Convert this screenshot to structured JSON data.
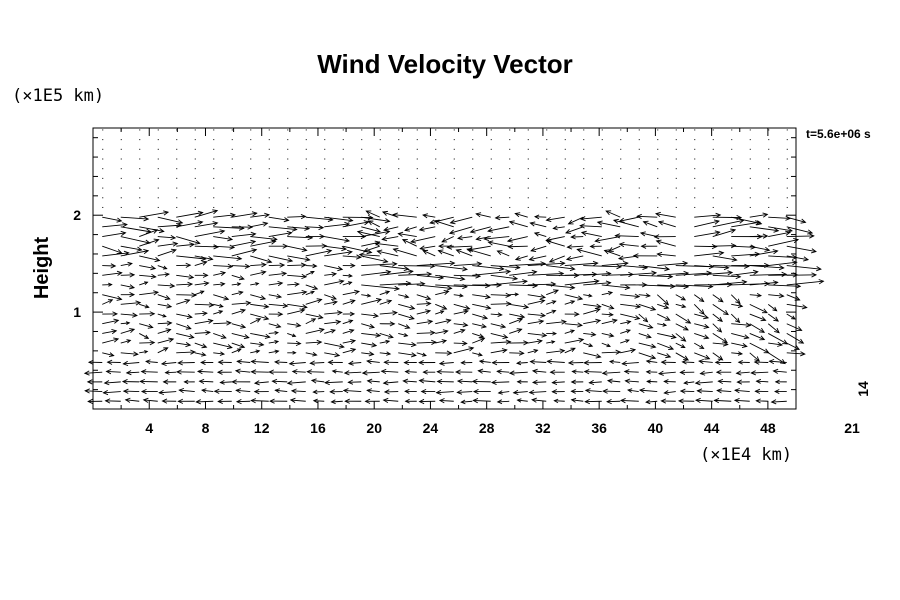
{
  "chart_data": {
    "type": "vector-field",
    "title": "Wind Velocity Vector",
    "ylabel": "Height",
    "xunit": "(×1E4 km)",
    "yunit": "(×1E5 km)",
    "time_label": "t=5.6e+06 s",
    "reference_vector_value": "14",
    "reference_vector_x": "21",
    "xlim": [
      0,
      50
    ],
    "ylim": [
      0,
      2.9
    ],
    "x_ticks": [
      4,
      8,
      12,
      16,
      20,
      24,
      28,
      32,
      36,
      40,
      44,
      48
    ],
    "y_ticks": [
      1,
      2
    ],
    "grid": false,
    "legend": "none"
  }
}
